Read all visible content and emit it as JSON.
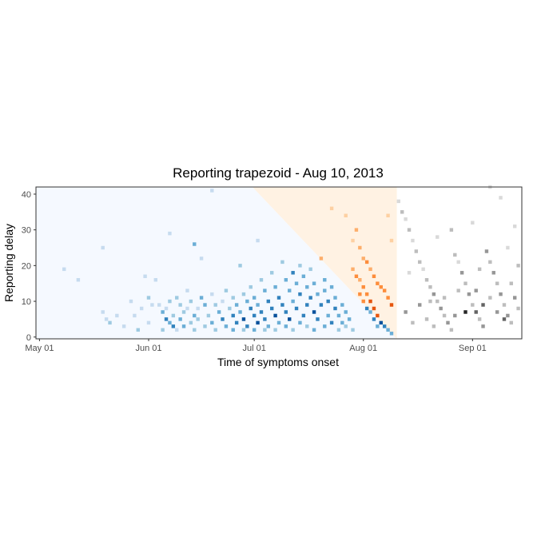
{
  "chart_data": {
    "type": "heatmap",
    "title": "Reporting trapezoid - Aug 10, 2013",
    "xlabel": "Time of symptoms onset",
    "ylabel": "Reporting delay",
    "x_ticks": [
      {
        "date": "2013-05-01",
        "label": "May 01"
      },
      {
        "date": "2013-06-01",
        "label": "Jun 01"
      },
      {
        "date": "2013-07-01",
        "label": "Jul 01"
      },
      {
        "date": "2013-08-01",
        "label": "Aug 01"
      },
      {
        "date": "2013-09-01",
        "label": "Sep 01"
      }
    ],
    "y_ticks": [
      0,
      10,
      20,
      30,
      40
    ],
    "xlim": [
      "2013-04-30",
      "2013-09-15"
    ],
    "ylim": [
      -0.5,
      42
    ],
    "now": "2013-08-10",
    "max_delay": 40,
    "legend": "none",
    "grid": false,
    "regions": [
      {
        "name": "observed",
        "color": "#f5f9ff",
        "cell_palette": [
          "#c6dbef",
          "#9ecae1",
          "#6baed6",
          "#3182bd",
          "#08519c"
        ]
      },
      {
        "name": "not-yet-observed",
        "color": "#fff2e3",
        "cell_palette": [
          "#fdd0a2",
          "#fdae6b",
          "#fd8d3c",
          "#e6550d",
          "#a63603"
        ]
      },
      {
        "name": "future",
        "color": "#ffffff",
        "cell_palette": [
          "#d9d9d9",
          "#bdbdbd",
          "#969696",
          "#636363",
          "#252525"
        ]
      }
    ],
    "cells": [
      [
        "2013-05-08",
        19,
        1
      ],
      [
        "2013-05-12",
        16,
        1
      ],
      [
        "2013-05-19",
        25,
        1
      ],
      [
        "2013-05-19",
        7,
        1
      ],
      [
        "2013-05-20",
        5,
        1
      ],
      [
        "2013-05-21",
        4,
        2
      ],
      [
        "2013-05-23",
        6,
        1
      ],
      [
        "2013-05-25",
        3,
        1
      ],
      [
        "2013-05-27",
        10,
        1
      ],
      [
        "2013-05-28",
        6,
        1
      ],
      [
        "2013-05-29",
        2,
        2
      ],
      [
        "2013-05-30",
        8,
        1
      ],
      [
        "2013-05-31",
        17,
        1
      ],
      [
        "2013-06-01",
        11,
        2
      ],
      [
        "2013-06-01",
        4,
        1
      ],
      [
        "2013-06-02",
        9,
        1
      ],
      [
        "2013-06-03",
        16,
        1
      ],
      [
        "2013-06-04",
        9,
        1
      ],
      [
        "2013-06-05",
        7,
        3
      ],
      [
        "2013-06-05",
        2,
        2
      ],
      [
        "2013-06-06",
        8,
        1
      ],
      [
        "2013-06-06",
        5,
        4
      ],
      [
        "2013-06-07",
        29,
        1
      ],
      [
        "2013-06-07",
        10,
        2
      ],
      [
        "2013-06-07",
        4,
        3
      ],
      [
        "2013-06-08",
        6,
        2
      ],
      [
        "2013-06-08",
        3,
        4
      ],
      [
        "2013-06-09",
        11,
        2
      ],
      [
        "2013-06-09",
        2,
        1
      ],
      [
        "2013-06-10",
        9,
        2
      ],
      [
        "2013-06-10",
        5,
        3
      ],
      [
        "2013-06-11",
        7,
        2
      ],
      [
        "2013-06-11",
        3,
        3
      ],
      [
        "2013-06-12",
        13,
        1
      ],
      [
        "2013-06-12",
        8,
        1
      ],
      [
        "2013-06-13",
        10,
        2
      ],
      [
        "2013-06-13",
        4,
        2
      ],
      [
        "2013-06-14",
        26,
        3
      ],
      [
        "2013-06-14",
        6,
        3
      ],
      [
        "2013-06-14",
        2,
        2
      ],
      [
        "2013-06-15",
        8,
        1
      ],
      [
        "2013-06-15",
        5,
        2
      ],
      [
        "2013-06-16",
        22,
        1
      ],
      [
        "2013-06-16",
        11,
        3
      ],
      [
        "2013-06-17",
        9,
        3
      ],
      [
        "2013-06-17",
        3,
        2
      ],
      [
        "2013-06-18",
        6,
        2
      ],
      [
        "2013-06-19",
        41,
        1
      ],
      [
        "2013-06-19",
        12,
        1
      ],
      [
        "2013-06-19",
        4,
        3
      ],
      [
        "2013-06-20",
        9,
        2
      ],
      [
        "2013-06-20",
        2,
        2
      ],
      [
        "2013-06-21",
        7,
        3
      ],
      [
        "2013-06-22",
        10,
        1
      ],
      [
        "2013-06-22",
        5,
        4
      ],
      [
        "2013-06-23",
        13,
        2
      ],
      [
        "2013-06-23",
        3,
        3
      ],
      [
        "2013-06-24",
        8,
        2
      ],
      [
        "2013-06-25",
        11,
        2
      ],
      [
        "2013-06-25",
        6,
        4
      ],
      [
        "2013-06-25",
        2,
        3
      ],
      [
        "2013-06-26",
        9,
        3
      ],
      [
        "2013-06-26",
        4,
        4
      ],
      [
        "2013-06-27",
        20,
        2
      ],
      [
        "2013-06-27",
        7,
        3
      ],
      [
        "2013-06-28",
        12,
        2
      ],
      [
        "2013-06-28",
        5,
        5
      ],
      [
        "2013-06-28",
        2,
        2
      ],
      [
        "2013-06-29",
        10,
        3
      ],
      [
        "2013-06-29",
        3,
        4
      ],
      [
        "2013-06-30",
        14,
        2
      ],
      [
        "2013-06-30",
        8,
        4
      ],
      [
        "2013-07-01",
        11,
        3
      ],
      [
        "2013-07-01",
        6,
        4
      ],
      [
        "2013-07-01",
        2,
        3
      ],
      [
        "2013-07-02",
        27,
        1
      ],
      [
        "2013-07-02",
        9,
        3
      ],
      [
        "2013-07-02",
        4,
        5
      ],
      [
        "2013-07-03",
        16,
        2
      ],
      [
        "2013-07-03",
        7,
        4
      ],
      [
        "2013-07-04",
        13,
        3
      ],
      [
        "2013-07-04",
        5,
        4
      ],
      [
        "2013-07-04",
        2,
        2
      ],
      [
        "2013-07-05",
        10,
        4
      ],
      [
        "2013-07-05",
        3,
        3
      ],
      [
        "2013-07-06",
        18,
        2
      ],
      [
        "2013-07-06",
        8,
        4
      ],
      [
        "2013-07-07",
        14,
        3
      ],
      [
        "2013-07-07",
        6,
        5
      ],
      [
        "2013-07-07",
        2,
        2
      ],
      [
        "2013-07-08",
        11,
        4
      ],
      [
        "2013-07-08",
        4,
        3
      ],
      [
        "2013-07-09",
        21,
        2
      ],
      [
        "2013-07-09",
        9,
        4
      ],
      [
        "2013-07-10",
        16,
        3
      ],
      [
        "2013-07-10",
        7,
        4
      ],
      [
        "2013-07-10",
        3,
        3
      ],
      [
        "2013-07-11",
        13,
        3
      ],
      [
        "2013-07-11",
        5,
        5
      ],
      [
        "2013-07-12",
        18,
        4
      ],
      [
        "2013-07-12",
        10,
        3
      ],
      [
        "2013-07-12",
        2,
        2
      ],
      [
        "2013-07-13",
        15,
        3
      ],
      [
        "2013-07-13",
        8,
        4
      ],
      [
        "2013-07-14",
        20,
        2
      ],
      [
        "2013-07-14",
        12,
        4
      ],
      [
        "2013-07-14",
        4,
        3
      ],
      [
        "2013-07-15",
        17,
        3
      ],
      [
        "2013-07-15",
        6,
        4
      ],
      [
        "2013-07-16",
        14,
        3
      ],
      [
        "2013-07-16",
        9,
        4
      ],
      [
        "2013-07-16",
        3,
        2
      ],
      [
        "2013-07-17",
        19,
        2
      ],
      [
        "2013-07-17",
        11,
        4
      ],
      [
        "2013-07-18",
        15,
        3
      ],
      [
        "2013-07-18",
        7,
        5
      ],
      [
        "2013-07-18",
        2,
        3
      ],
      [
        "2013-07-19",
        12,
        3
      ],
      [
        "2013-07-19",
        5,
        4
      ],
      [
        "2013-07-20",
        22,
        2
      ],
      [
        "2013-07-20",
        9,
        4
      ],
      [
        "2013-07-21",
        16,
        3
      ],
      [
        "2013-07-21",
        13,
        3
      ],
      [
        "2013-07-21",
        3,
        3
      ],
      [
        "2013-07-22",
        10,
        4
      ],
      [
        "2013-07-22",
        6,
        3
      ],
      [
        "2013-07-23",
        14,
        3
      ],
      [
        "2013-07-23",
        4,
        4
      ],
      [
        "2013-07-24",
        11,
        3
      ],
      [
        "2013-07-24",
        8,
        4
      ],
      [
        "2013-07-25",
        6,
        3
      ],
      [
        "2013-07-25",
        2,
        2
      ],
      [
        "2013-07-26",
        9,
        3
      ],
      [
        "2013-07-26",
        4,
        3
      ],
      [
        "2013-07-27",
        7,
        3
      ],
      [
        "2013-07-27",
        3,
        2
      ],
      [
        "2013-07-28",
        5,
        3
      ],
      [
        "2013-07-29",
        2,
        2
      ],
      [
        "2013-07-23",
        36,
        1
      ],
      [
        "2013-07-27",
        34,
        1
      ],
      [
        "2013-07-30",
        30,
        2
      ],
      [
        "2013-07-29",
        27,
        1
      ],
      [
        "2013-07-31",
        25,
        2
      ],
      [
        "2013-08-01",
        22,
        2
      ],
      [
        "2013-08-02",
        21,
        3
      ],
      [
        "2013-08-03",
        19,
        2
      ],
      [
        "2013-08-04",
        17,
        3
      ],
      [
        "2013-08-05",
        15,
        3
      ],
      [
        "2013-08-06",
        14,
        3
      ],
      [
        "2013-08-07",
        13,
        3
      ],
      [
        "2013-08-08",
        34,
        1
      ],
      [
        "2013-08-08",
        11,
        3
      ],
      [
        "2013-08-09",
        9,
        4
      ],
      [
        "2013-08-09",
        27,
        1
      ],
      [
        "2013-07-31",
        16,
        2
      ],
      [
        "2013-08-01",
        14,
        3
      ],
      [
        "2013-08-02",
        12,
        3
      ],
      [
        "2013-08-03",
        10,
        4
      ],
      [
        "2013-08-04",
        8,
        4
      ],
      [
        "2013-08-05",
        6,
        4
      ],
      [
        "2013-08-06",
        4,
        5
      ],
      [
        "2013-08-07",
        3,
        4
      ],
      [
        "2013-08-08",
        2,
        3
      ],
      [
        "2013-08-09",
        1,
        3
      ],
      [
        "2013-07-29",
        19,
        2
      ],
      [
        "2013-07-30",
        17,
        3
      ],
      [
        "2013-07-31",
        12,
        3
      ],
      [
        "2013-08-01",
        10,
        3
      ],
      [
        "2013-08-02",
        8,
        4
      ],
      [
        "2013-08-03",
        7,
        3
      ],
      [
        "2013-08-04",
        5,
        4
      ],
      [
        "2013-08-05",
        3,
        3
      ],
      [
        "2013-08-11",
        38,
        1
      ],
      [
        "2013-08-12",
        35,
        2
      ],
      [
        "2013-08-13",
        33,
        1
      ],
      [
        "2013-08-14",
        30,
        2
      ],
      [
        "2013-08-15",
        27,
        1
      ],
      [
        "2013-08-16",
        24,
        2
      ],
      [
        "2013-08-17",
        21,
        2
      ],
      [
        "2013-08-18",
        19,
        1
      ],
      [
        "2013-08-19",
        16,
        2
      ],
      [
        "2013-08-20",
        14,
        2
      ],
      [
        "2013-08-21",
        12,
        3
      ],
      [
        "2013-08-22",
        10,
        2
      ],
      [
        "2013-08-23",
        8,
        3
      ],
      [
        "2013-08-24",
        6,
        2
      ],
      [
        "2013-08-25",
        4,
        3
      ],
      [
        "2013-08-26",
        2,
        2
      ],
      [
        "2013-08-27",
        23,
        2
      ],
      [
        "2013-08-28",
        21,
        1
      ],
      [
        "2013-08-29",
        18,
        3
      ],
      [
        "2013-08-30",
        15,
        2
      ],
      [
        "2013-08-31",
        12,
        3
      ],
      [
        "2013-09-01",
        9,
        2
      ],
      [
        "2013-09-02",
        7,
        4
      ],
      [
        "2013-09-03",
        5,
        2
      ],
      [
        "2013-09-04",
        3,
        3
      ],
      [
        "2013-09-05",
        24,
        3
      ],
      [
        "2013-09-06",
        21,
        2
      ],
      [
        "2013-09-07",
        18,
        3
      ],
      [
        "2013-09-08",
        15,
        2
      ],
      [
        "2013-09-09",
        12,
        3
      ],
      [
        "2013-09-10",
        9,
        2
      ],
      [
        "2013-09-11",
        6,
        3
      ],
      [
        "2013-09-12",
        4,
        2
      ],
      [
        "2013-09-13",
        11,
        3
      ],
      [
        "2013-09-14",
        8,
        2
      ],
      [
        "2013-08-13",
        7,
        3
      ],
      [
        "2013-08-15",
        4,
        2
      ],
      [
        "2013-08-17",
        9,
        3
      ],
      [
        "2013-08-19",
        5,
        2
      ],
      [
        "2013-08-21",
        3,
        2
      ],
      [
        "2013-08-24",
        11,
        2
      ],
      [
        "2013-08-27",
        6,
        3
      ],
      [
        "2013-08-30",
        7,
        5
      ],
      [
        "2013-09-02",
        13,
        3
      ],
      [
        "2013-09-04",
        9,
        4
      ],
      [
        "2013-09-06",
        11,
        2
      ],
      [
        "2013-09-08",
        7,
        3
      ],
      [
        "2013-09-10",
        5,
        4
      ],
      [
        "2013-09-12",
        15,
        2
      ],
      [
        "2013-08-14",
        18,
        1
      ],
      [
        "2013-08-22",
        28,
        1
      ],
      [
        "2013-08-26",
        30,
        2
      ],
      [
        "2013-09-01",
        32,
        1
      ],
      [
        "2013-09-06",
        42,
        1
      ],
      [
        "2013-09-09",
        39,
        1
      ],
      [
        "2013-09-13",
        31,
        1
      ],
      [
        "2013-09-14",
        20,
        2
      ],
      [
        "2013-08-20",
        10,
        2
      ],
      [
        "2013-08-28",
        13,
        2
      ],
      [
        "2013-09-03",
        19,
        2
      ],
      [
        "2013-09-11",
        25,
        1
      ]
    ]
  }
}
